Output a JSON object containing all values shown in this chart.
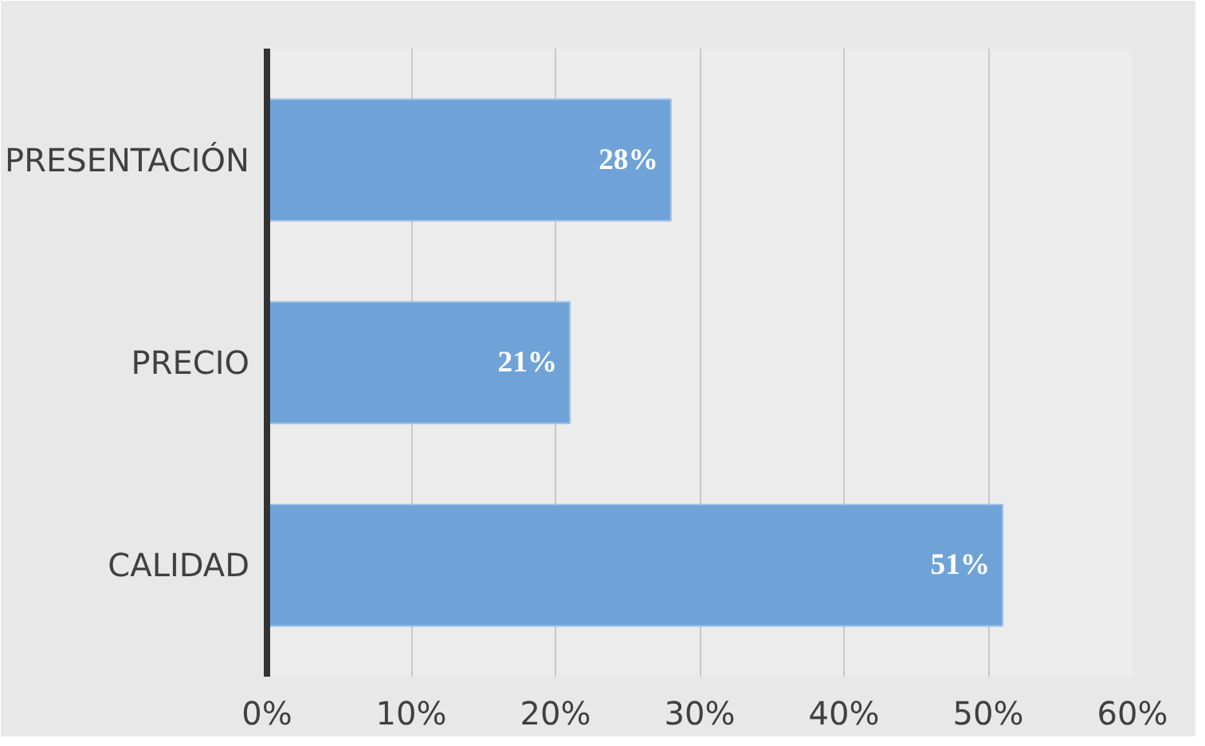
{
  "chart_data": {
    "type": "bar",
    "orientation": "horizontal",
    "categories": [
      "PRESENTACIÓN",
      "PRECIO",
      "CALIDAD"
    ],
    "values": [
      28,
      21,
      51
    ],
    "color": "#6fa3d8",
    "value_labels": [
      "28%",
      "21%",
      "51%"
    ],
    "xlim": [
      0,
      60
    ],
    "xticks": [
      {
        "value": 0,
        "label": "0%"
      },
      {
        "value": 10,
        "label": "10%"
      },
      {
        "value": 20,
        "label": "20%"
      },
      {
        "value": 30,
        "label": "30%"
      },
      {
        "value": 40,
        "label": "40%"
      },
      {
        "value": 50,
        "label": "50%"
      },
      {
        "value": 60,
        "label": "60%"
      }
    ],
    "grid": "x"
  }
}
